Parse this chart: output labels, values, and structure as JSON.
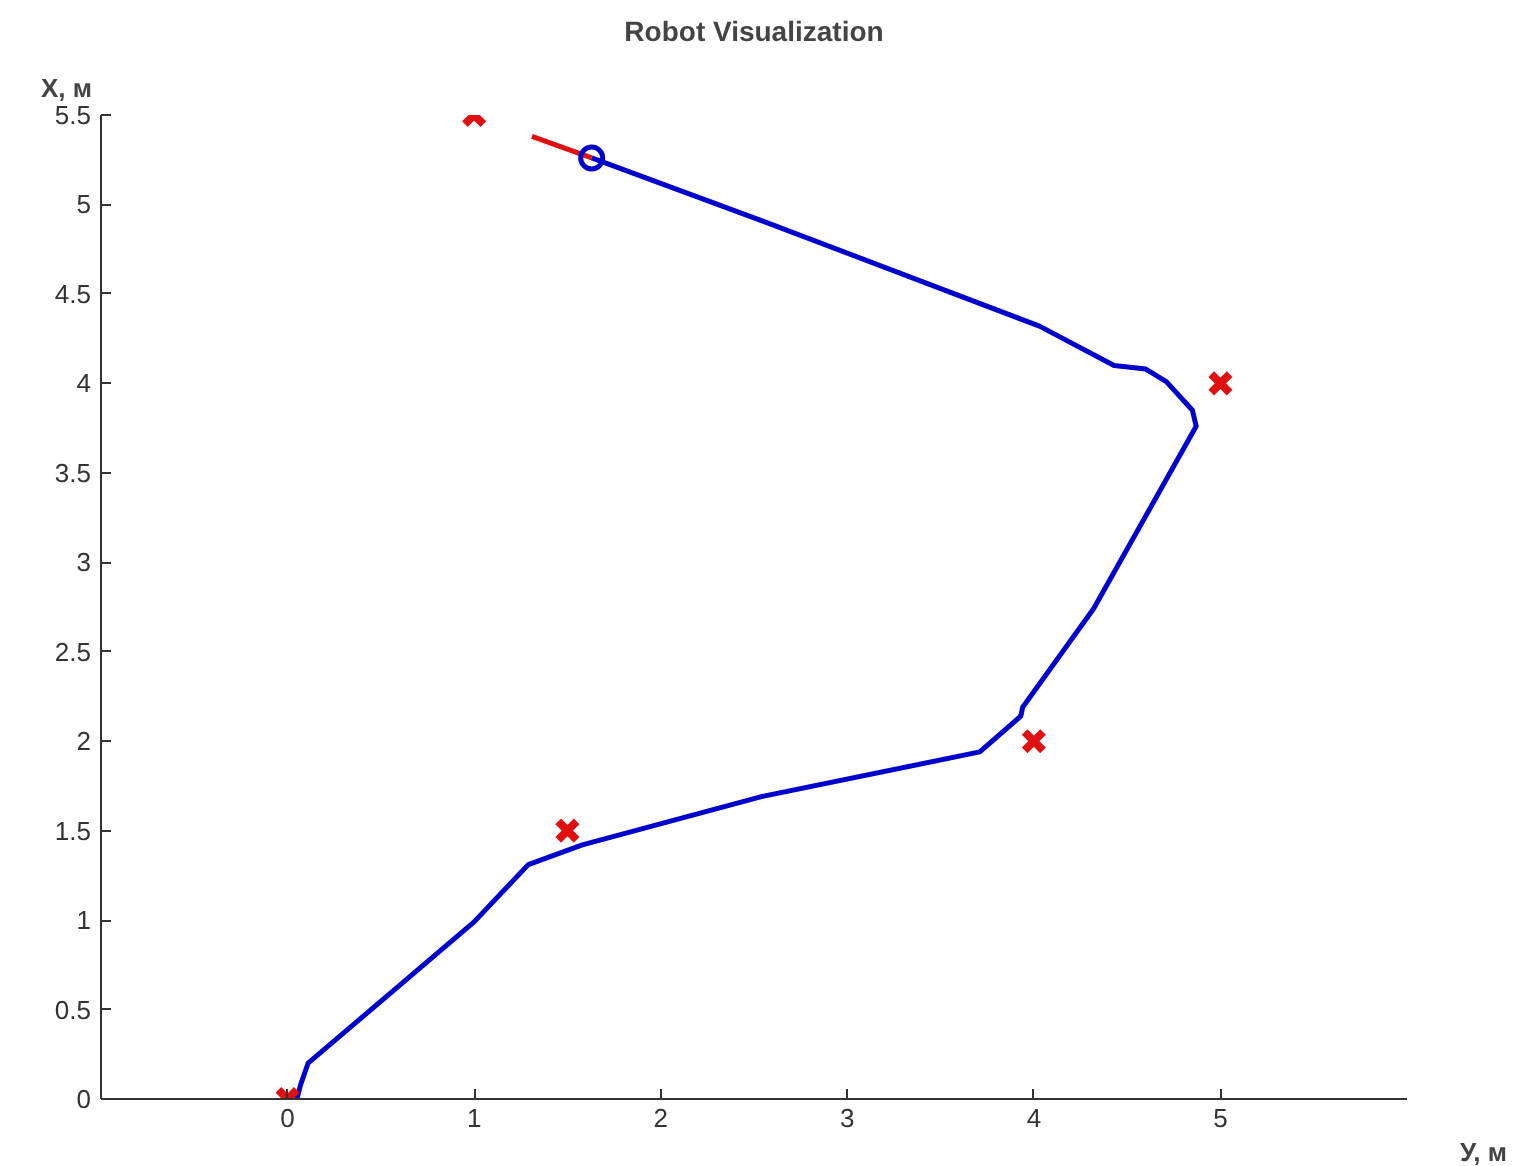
{
  "chart_data": {
    "type": "line",
    "title": "Robot Visualization",
    "xlabel": "У, м",
    "ylabel": "X, м",
    "xlim": [
      -1,
      6
    ],
    "ylim": [
      0,
      5.5
    ],
    "xticks": [
      0,
      1,
      2,
      3,
      4,
      5
    ],
    "yticks": [
      0,
      0.5,
      1,
      1.5,
      2,
      2.5,
      3,
      3.5,
      4,
      4.5,
      5,
      5.5
    ],
    "grid": false,
    "series": [
      {
        "color": "#0000cc",
        "marker": "none",
        "x": [
          0.05,
          0.07,
          0.11,
          1.0,
          1.29,
          1.58,
          2.54,
          3.71,
          3.93,
          3.94,
          4.32,
          4.87,
          4.85,
          4.71,
          4.6,
          4.43,
          4.03,
          2.54,
          1.63
        ],
        "values": [
          0.0,
          0.08,
          0.2,
          0.99,
          1.31,
          1.42,
          1.69,
          1.94,
          2.14,
          2.19,
          2.74,
          3.76,
          3.85,
          4.01,
          4.08,
          4.1,
          4.32,
          4.91,
          5.26
        ]
      },
      {
        "type": "line",
        "color": "#e01010",
        "marker": "none",
        "x": [
          1.31,
          1.63
        ],
        "values": [
          5.38,
          5.26
        ]
      },
      {
        "type": "scatter",
        "color": "#0000cc",
        "marker": "circle",
        "x": [
          1.63
        ],
        "values": [
          5.26
        ]
      },
      {
        "type": "scatter",
        "color": "#e01010",
        "marker": "cross",
        "x": [
          0,
          1.5,
          4,
          5,
          1
        ],
        "values": [
          0,
          1.5,
          2,
          4,
          5.5
        ]
      }
    ]
  }
}
